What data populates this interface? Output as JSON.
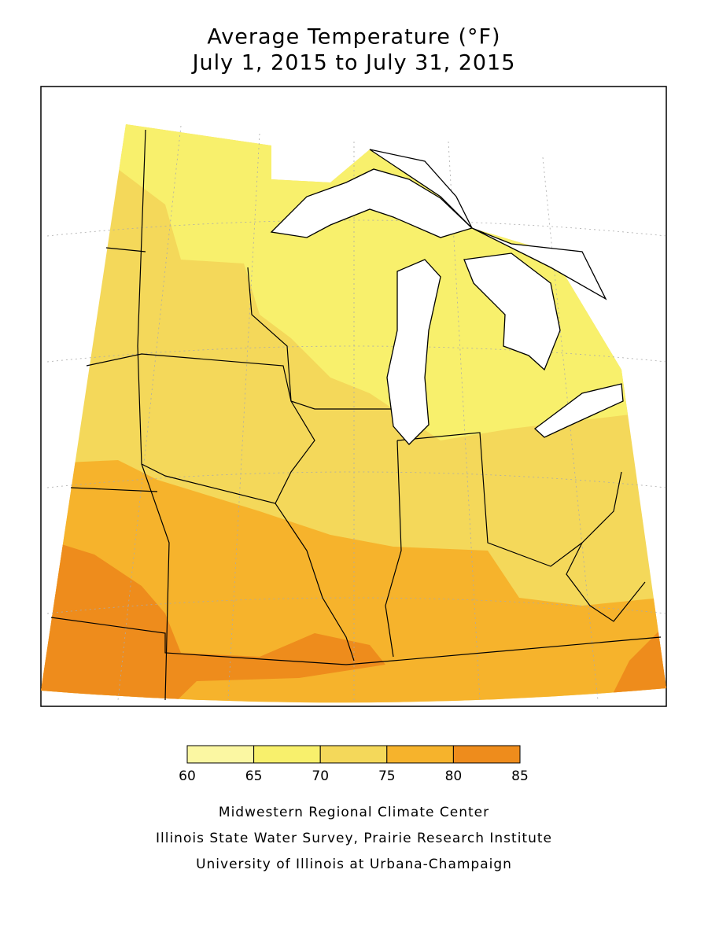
{
  "title": [
    "Average Temperature (°F)",
    "July 1, 2015 to July 31, 2015"
  ],
  "legend": {
    "ticks": [
      60,
      65,
      70,
      75,
      80,
      85
    ],
    "colors": [
      "#fbf7a2",
      "#f8f06c",
      "#f4d85a",
      "#f6b32c",
      "#ee8c1c"
    ]
  },
  "credits": [
    "Midwestern Regional Climate Center",
    "Illinois State Water Survey, Prairie Research Institute",
    "University of Illinois at Urbana-Champaign"
  ]
}
